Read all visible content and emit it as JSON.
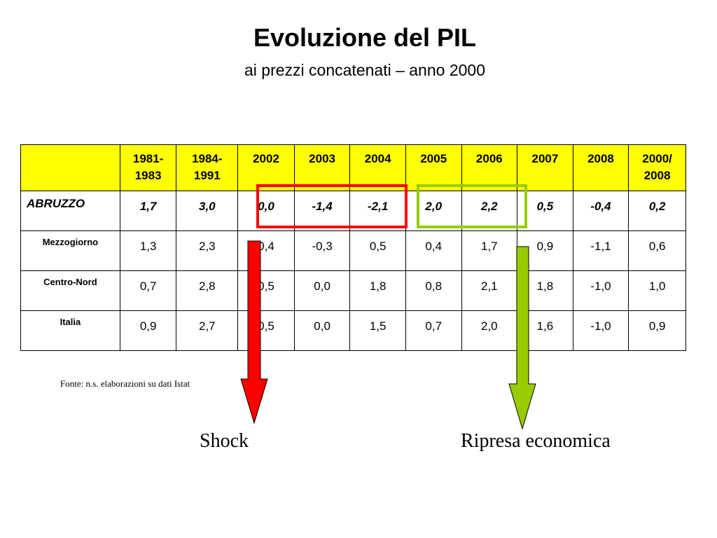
{
  "title": "Evoluzione del PIL",
  "subtitle": "ai prezzi concatenati – anno 2000",
  "table": {
    "headers": [
      "",
      "1981-\n1983",
      "1984-\n1991",
      "2002",
      "2003",
      "2004",
      "2005",
      "2006",
      "2007",
      "2008",
      "2000/\n2008"
    ],
    "rows": [
      {
        "label": "ABRUZZO",
        "values": [
          "1,7",
          "3,0",
          "0,0",
          "-1,4",
          "-2,1",
          "2,0",
          "2,2",
          "0,5",
          "-0,4",
          "0,2"
        ]
      },
      {
        "label": "Mezzogiorno",
        "values": [
          "1,3",
          "2,3",
          "0,4",
          "-0,3",
          "0,5",
          "0,4",
          "1,7",
          "0,9",
          "-1,1",
          "0,6"
        ]
      },
      {
        "label": "Centro-Nord",
        "values": [
          "0,7",
          "2,8",
          "0,5",
          "0,0",
          "1,8",
          "0,8",
          "2,1",
          "1,8",
          "-1,0",
          "1,0"
        ]
      },
      {
        "label": "Italia",
        "values": [
          "0,9",
          "2,7",
          "0,5",
          "0,0",
          "1,5",
          "0,7",
          "2,0",
          "1,6",
          "-1,0",
          "0,9"
        ]
      }
    ]
  },
  "source": "Fonte: n.s. elaborazioni su dati Istat",
  "annotations": {
    "shock": {
      "label": "Shock",
      "color": "#ff0000",
      "highlight_years": [
        "2002",
        "2003",
        "2004"
      ]
    },
    "ripresa": {
      "label": "Ripresa economica",
      "color": "#99cc00",
      "highlight_years": [
        "2005",
        "2006"
      ]
    }
  },
  "colors": {
    "header_bg": "#ffff00",
    "shock": "#ff0000",
    "ripresa": "#99cc00"
  }
}
